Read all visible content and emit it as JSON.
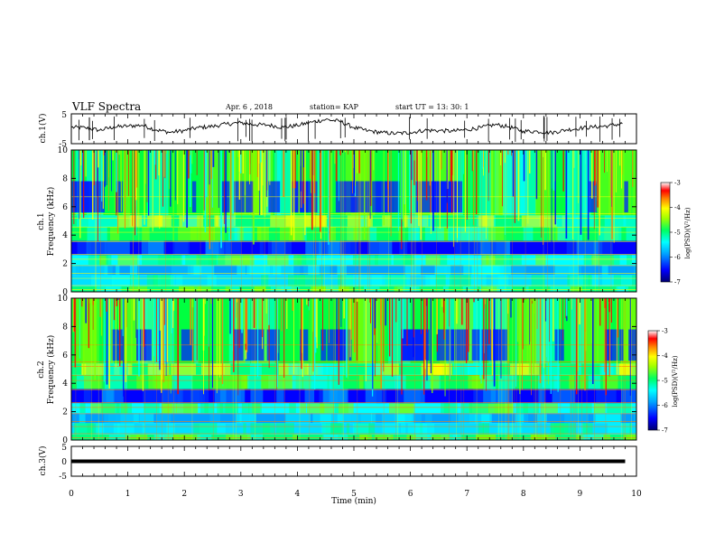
{
  "header": {
    "title": "VLF Spectra",
    "date": "Apr. 6 , 2018",
    "station": "station= KAP",
    "start": "start UT = 13: 30: 1"
  },
  "colors": {
    "scale": [
      "#000080",
      "#0000ff",
      "#00a0ff",
      "#00ffff",
      "#00ff80",
      "#80ff00",
      "#ffff00",
      "#ff8000",
      "#ff0000",
      "#ffffff"
    ],
    "trace": "#000000",
    "frame": "#000000"
  },
  "chart_data": [
    {
      "type": "line",
      "panel": "ch1-waveform",
      "ylabel": "ch.1(V)",
      "ylim": [
        -5,
        5
      ],
      "yticks": [
        "5",
        "-5"
      ],
      "xlim": [
        0,
        10
      ],
      "x": [
        0,
        0.25,
        0.5,
        0.75,
        1,
        1.25,
        1.5,
        1.75,
        2,
        2.25,
        2.5,
        2.75,
        3,
        3.25,
        3.5,
        3.75,
        4,
        4.25,
        4.5,
        4.75,
        5,
        5.25,
        5.5,
        5.75,
        6,
        6.25,
        6.5,
        6.75,
        7,
        7.25,
        7.5,
        7.75,
        8,
        8.25,
        8.5,
        8.75,
        9,
        9.25,
        9.5,
        9.75
      ],
      "y": [
        0.5,
        0.3,
        -0.5,
        0.6,
        0.9,
        1.2,
        -0.4,
        -1.2,
        -0.6,
        0.4,
        0.8,
        1.6,
        2.0,
        1.4,
        1.2,
        0.5,
        1.1,
        2.2,
        3.1,
        2.5,
        0.4,
        -0.7,
        -1.3,
        -1.6,
        -1.3,
        -0.5,
        -0.6,
        -0.8,
        -0.3,
        0.4,
        1.4,
        0.6,
        -0.8,
        -0.9,
        -1.3,
        -0.4,
        0.2,
        0.6,
        1.0,
        1.7
      ]
    },
    {
      "type": "heatmap",
      "panel": "ch1-spectrogram",
      "ylabel": "ch.1\nFrequency (kHz)",
      "ylim": [
        0,
        10
      ],
      "yticks": [
        "0",
        "2",
        "4",
        "6",
        "8",
        "10"
      ],
      "xlim": [
        0,
        10
      ],
      "colorbar": {
        "label": "log(PSD)(V²/Hz)",
        "range": [
          -7,
          -3
        ],
        "ticks": [
          "-3",
          "-4",
          "-5",
          "-6",
          "-7"
        ]
      }
    },
    {
      "type": "heatmap",
      "panel": "ch2-spectrogram",
      "ylabel": "ch.2\nFrequency (kHz)",
      "ylim": [
        0,
        10
      ],
      "yticks": [
        "0",
        "2",
        "4",
        "6",
        "8",
        "10"
      ],
      "xlim": [
        0,
        10
      ],
      "colorbar": {
        "label": "log(PSD)(V²/Hz)",
        "range": [
          -7,
          -3
        ],
        "ticks": [
          "-3",
          "-4",
          "-5",
          "-6",
          "-7"
        ]
      }
    },
    {
      "type": "line",
      "panel": "ch3-waveform",
      "ylabel": "ch.3(V)",
      "ylim": [
        -5,
        5
      ],
      "yticks": [
        "5",
        "0",
        "-5"
      ],
      "xlim": [
        0,
        10
      ],
      "x": [
        0,
        9.8
      ],
      "y": [
        0,
        0
      ]
    }
  ],
  "xaxis": {
    "label": "Time (min)",
    "ticks": [
      "0",
      "1",
      "2",
      "3",
      "4",
      "5",
      "6",
      "7",
      "8",
      "9",
      "10"
    ]
  }
}
